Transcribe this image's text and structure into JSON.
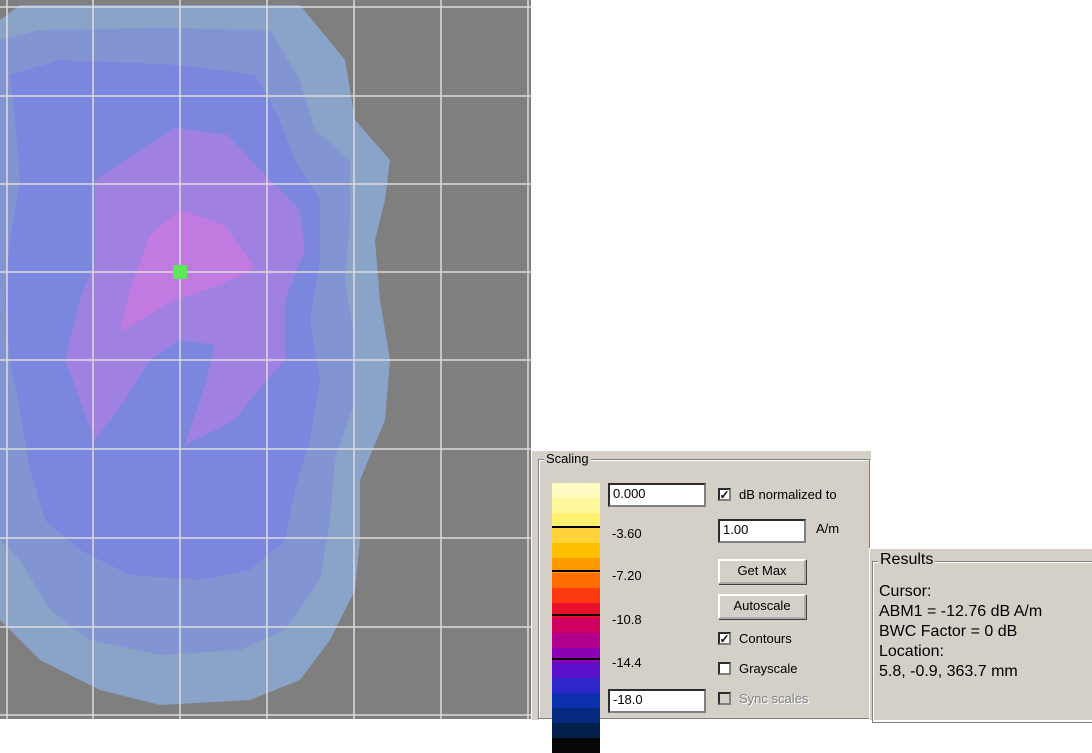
{
  "plot": {
    "grid_color": "#dcdcdc",
    "background": "#7f7f7f",
    "contour_colors": [
      "#8aa3c8",
      "#8394d2",
      "#7b86de",
      "#a080e0",
      "#c07ae0"
    ],
    "marker_color": "#5ce65c"
  },
  "scaling": {
    "title": "Scaling",
    "colors": [
      "#fffbc0",
      "#fff79a",
      "#fff070",
      "#ffd23a",
      "#ffbe00",
      "#ff9a00",
      "#ff6c00",
      "#ff3a10",
      "#e8102a",
      "#d00060",
      "#b0008c",
      "#8c00b4",
      "#5a10c8",
      "#2e28cc",
      "#0c2fb0",
      "#062a80",
      "#03204a",
      "#060606"
    ],
    "tick_labels": [
      "-3.60",
      "-7.20",
      "-10.8",
      "-14.4"
    ],
    "max_value": "0.000",
    "min_value": "-18.0",
    "db_normalized_label": "dB normalized to",
    "normalize_value": "1.00",
    "normalize_unit": "A/m",
    "get_max_label": "Get Max",
    "autoscale_label": "Autoscale",
    "contours_label": "Contours",
    "grayscale_label": "Grayscale",
    "sync_scales_label": "Sync scales"
  },
  "results": {
    "title": "Results",
    "cursor_label": "Cursor:",
    "value_line": "ABM1 = -12.76 dB A/m",
    "bwc_line": "BWC Factor = 0 dB",
    "location_label": "Location:",
    "location_value": "5.8, -0.9, 363.7 mm"
  }
}
